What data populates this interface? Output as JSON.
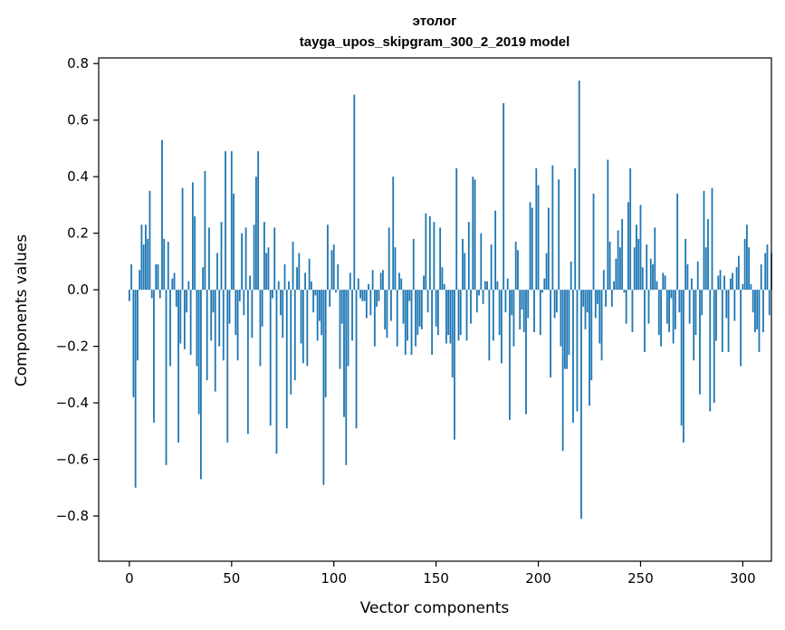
{
  "chart_data": {
    "type": "bar",
    "title": "этолог",
    "subtitle": "tayga_upos_skipgram_300_2_2019 model",
    "xlabel": "Vector components",
    "ylabel": "Components values",
    "xlim": [
      -15,
      314
    ],
    "ylim": [
      -0.96,
      0.82
    ],
    "xticks": [
      0,
      50,
      100,
      150,
      200,
      250,
      300
    ],
    "xtick_labels": [
      "0",
      "50",
      "100",
      "150",
      "200",
      "250",
      "300"
    ],
    "yticks": [
      0.8,
      0.6,
      0.4,
      0.2,
      0.0,
      -0.2,
      -0.4,
      -0.6,
      -0.8
    ],
    "ytick_labels": [
      "0.8",
      "0.6",
      "0.4",
      "0.2",
      "0.0",
      "−0.2",
      "−0.4",
      "−0.6",
      "−0.8"
    ],
    "grid": false,
    "bar_color": "#1f77b4",
    "values": [
      -0.04,
      0.09,
      -0.38,
      -0.7,
      -0.25,
      0.07,
      0.23,
      0.16,
      0.23,
      0.18,
      0.35,
      -0.03,
      -0.47,
      0.09,
      0.09,
      -0.03,
      0.53,
      0.18,
      -0.62,
      0.17,
      -0.27,
      0.04,
      0.06,
      -0.06,
      -0.54,
      -0.19,
      0.36,
      -0.21,
      -0.08,
      0.03,
      -0.23,
      0.38,
      0.26,
      -0.27,
      -0.44,
      -0.67,
      0.08,
      0.42,
      -0.32,
      0.22,
      -0.18,
      -0.08,
      -0.36,
      0.13,
      -0.2,
      0.24,
      -0.25,
      0.49,
      -0.54,
      -0.12,
      0.49,
      0.34,
      -0.16,
      -0.25,
      -0.04,
      0.2,
      -0.09,
      0.22,
      -0.51,
      0.05,
      -0.17,
      0.23,
      0.4,
      0.49,
      -0.27,
      -0.13,
      0.24,
      0.13,
      0.15,
      -0.48,
      -0.03,
      0.22,
      -0.58,
      0.03,
      -0.09,
      -0.17,
      0.09,
      -0.49,
      0.03,
      -0.37,
      0.17,
      -0.32,
      0.08,
      0.13,
      -0.19,
      -0.26,
      0.06,
      -0.27,
      0.11,
      0.03,
      -0.08,
      -0.02,
      -0.18,
      -0.11,
      -0.16,
      -0.69,
      -0.38,
      0.23,
      -0.06,
      0.14,
      0.16,
      -0.01,
      0.09,
      -0.28,
      -0.12,
      -0.45,
      -0.62,
      -0.27,
      0.06,
      -0.18,
      0.69,
      -0.49,
      0.04,
      -0.03,
      -0.04,
      -0.04,
      -0.1,
      0.02,
      -0.09,
      0.07,
      -0.2,
      -0.06,
      -0.04,
      0.06,
      0.07,
      -0.14,
      -0.17,
      0.22,
      -0.11,
      0.4,
      0.15,
      -0.2,
      0.06,
      0.04,
      -0.12,
      -0.23,
      -0.18,
      -0.04,
      -0.23,
      0.18,
      -0.2,
      -0.16,
      -0.13,
      -0.14,
      0.05,
      0.27,
      -0.08,
      0.26,
      -0.23,
      0.24,
      -0.13,
      -0.16,
      0.22,
      0.08,
      0.02,
      -0.19,
      -0.16,
      -0.19,
      -0.31,
      -0.53,
      0.43,
      -0.18,
      -0.16,
      0.18,
      0.13,
      -0.18,
      0.24,
      -0.12,
      0.4,
      0.39,
      -0.08,
      -0.02,
      0.2,
      -0.05,
      0.03,
      0.03,
      -0.25,
      0.16,
      -0.18,
      0.28,
      0.03,
      -0.16,
      -0.26,
      0.66,
      -0.08,
      0.04,
      -0.46,
      -0.09,
      -0.2,
      0.17,
      0.14,
      -0.14,
      -0.07,
      -0.15,
      -0.44,
      -0.1,
      0.31,
      0.29,
      -0.15,
      0.43,
      0.37,
      -0.16,
      -0.01,
      0.04,
      0.13,
      0.29,
      -0.31,
      0.44,
      -0.1,
      -0.08,
      0.39,
      -0.2,
      -0.57,
      -0.28,
      -0.28,
      -0.23,
      0.1,
      -0.47,
      0.43,
      -0.43,
      0.74,
      -0.81,
      -0.06,
      -0.14,
      -0.08,
      -0.41,
      -0.32,
      0.34,
      -0.1,
      -0.05,
      -0.19,
      -0.25,
      0.07,
      -0.06,
      0.46,
      0.17,
      -0.06,
      0.03,
      0.11,
      0.21,
      0.15,
      0.25,
      -0.01,
      -0.12,
      0.31,
      0.43,
      -0.15,
      0.15,
      0.23,
      0.18,
      0.3,
      0.08,
      -0.22,
      0.16,
      -0.12,
      0.11,
      0.09,
      0.22,
      0.03,
      -0.16,
      -0.2,
      0.06,
      0.05,
      -0.12,
      -0.15,
      -0.03,
      -0.19,
      -0.14,
      0.34,
      -0.08,
      -0.48,
      -0.54,
      0.18,
      0.09,
      -0.12,
      0.04,
      -0.25,
      -0.16,
      0.1,
      -0.37,
      -0.09,
      0.35,
      0.15,
      0.25,
      -0.43,
      0.36,
      -0.4,
      -0.18,
      0.05,
      0.07,
      -0.22,
      0.05,
      -0.1,
      -0.22,
      0.04,
      0.06,
      -0.11,
      0.08,
      0.12,
      -0.27,
      0.02,
      0.18,
      0.23,
      0.15,
      0.02,
      -0.08,
      -0.15,
      -0.14,
      -0.22,
      0.09,
      -0.15,
      0.13,
      0.16,
      -0.09,
      0.13
    ]
  }
}
